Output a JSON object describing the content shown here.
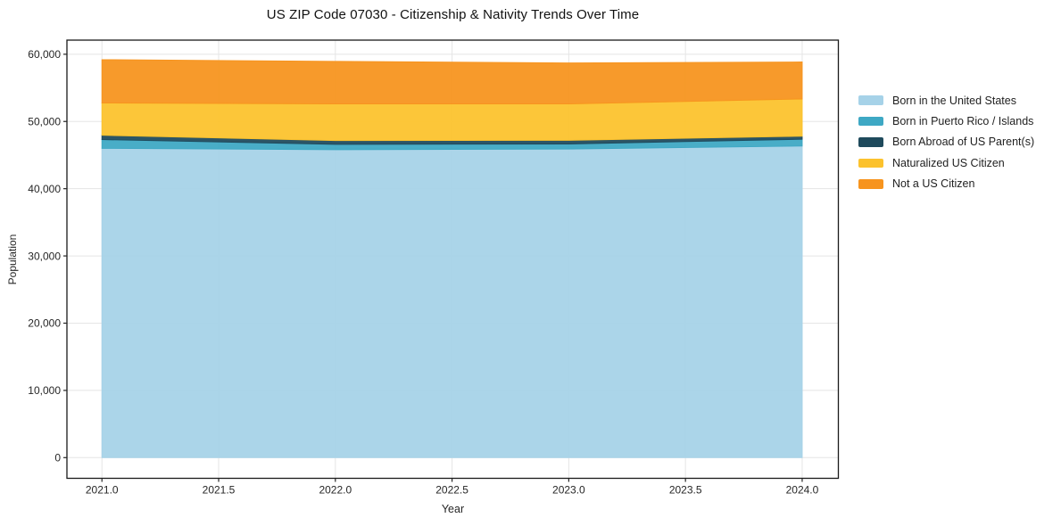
{
  "figure": {
    "background": "#ffffff"
  },
  "chart_data": {
    "type": "area",
    "stacked": true,
    "title": "US ZIP Code 07030 - Citizenship & Nativity Trends Over Time",
    "xlabel": "Year",
    "ylabel": "Population",
    "x": [
      2021,
      2022,
      2023,
      2024
    ],
    "series": [
      {
        "name": "Born in the United States",
        "color": "#a6d2e8",
        "values": [
          46000,
          45800,
          45900,
          46350
        ]
      },
      {
        "name": "Born in Puerto Rico / Islands",
        "color": "#3ea8c4",
        "values": [
          1300,
          800,
          750,
          1000
        ]
      },
      {
        "name": "Born Abroad of US Parent(s)",
        "color": "#1f4a5c",
        "values": [
          650,
          550,
          550,
          450
        ]
      },
      {
        "name": "Naturalized US Citizen",
        "color": "#fcc22d",
        "values": [
          4800,
          5450,
          5400,
          5550
        ]
      },
      {
        "name": "Not a US Citizen",
        "color": "#f7941e",
        "values": [
          6450,
          6350,
          6100,
          5500
        ]
      }
    ],
    "stacked_totals": [
      59200,
      58950,
      58700,
      58850
    ],
    "xlim": [
      2020.85,
      2024.155
    ],
    "ylim": [
      -3076,
      62100
    ],
    "xtick_values": [
      2021.0,
      2021.5,
      2022.0,
      2022.5,
      2023.0,
      2023.5,
      2024.0
    ],
    "xtick_labels": [
      "2021.0",
      "2021.5",
      "2022.0",
      "2022.5",
      "2023.0",
      "2023.5",
      "2024.0"
    ],
    "ytick_values": [
      0,
      10000,
      20000,
      30000,
      40000,
      50000,
      60000
    ],
    "ytick_labels": [
      "0",
      "10,000",
      "20,000",
      "30,000",
      "40,000",
      "50,000",
      "60,000"
    ],
    "grid": true,
    "legend_position": "center-right-outside"
  }
}
